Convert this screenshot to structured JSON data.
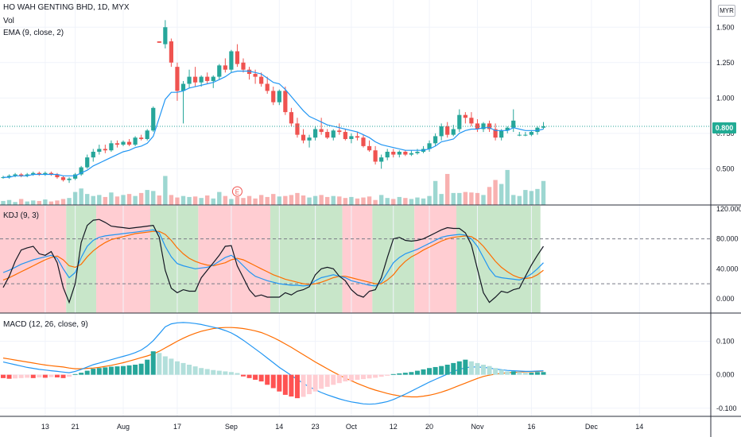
{
  "header": {
    "title": "HO WAH GENTING BHD, 1D, MYX",
    "vol_label": "Vol",
    "ema_label": "EMA (9, close, 2)",
    "currency": "MYR",
    "last_price": "0.800"
  },
  "panes": {
    "kdj_label": "KDJ (9, 3)",
    "macd_label": "MACD (12, 26, close, 9)"
  },
  "colors": {
    "up": "#26a69a",
    "down": "#ef5350",
    "ema": "#2196f3",
    "k": "#2196f3",
    "d": "#ff6d00",
    "j": "#131722",
    "macd": "#2196f3",
    "signal": "#ff6d00",
    "kdj_up_zone": "#c8e6c9",
    "kdj_down_zone": "#ffcdd2"
  },
  "chart_data": [
    {
      "type": "candlestick",
      "name": "price",
      "y_ticks": [
        "1.500",
        "1.250",
        "1.000",
        "0.750",
        "0.500"
      ],
      "ylim": [
        0.3,
        1.58
      ],
      "candles": [
        [
          0.44,
          0.45,
          0.43,
          0.44
        ],
        [
          0.44,
          0.46,
          0.43,
          0.45
        ],
        [
          0.45,
          0.47,
          0.44,
          0.46
        ],
        [
          0.46,
          0.47,
          0.44,
          0.45
        ],
        [
          0.45,
          0.47,
          0.44,
          0.46
        ],
        [
          0.46,
          0.48,
          0.45,
          0.47
        ],
        [
          0.47,
          0.48,
          0.45,
          0.46
        ],
        [
          0.46,
          0.48,
          0.45,
          0.47
        ],
        [
          0.47,
          0.48,
          0.45,
          0.46
        ],
        [
          0.46,
          0.47,
          0.43,
          0.44
        ],
        [
          0.44,
          0.45,
          0.41,
          0.42
        ],
        [
          0.42,
          0.44,
          0.4,
          0.43
        ],
        [
          0.43,
          0.47,
          0.42,
          0.46
        ],
        [
          0.46,
          0.52,
          0.45,
          0.51
        ],
        [
          0.51,
          0.6,
          0.5,
          0.58
        ],
        [
          0.58,
          0.64,
          0.55,
          0.62
        ],
        [
          0.62,
          0.67,
          0.6,
          0.64
        ],
        [
          0.64,
          0.67,
          0.61,
          0.63
        ],
        [
          0.63,
          0.7,
          0.62,
          0.68
        ],
        [
          0.68,
          0.7,
          0.65,
          0.67
        ],
        [
          0.67,
          0.7,
          0.66,
          0.69
        ],
        [
          0.69,
          0.71,
          0.66,
          0.67
        ],
        [
          0.67,
          0.73,
          0.66,
          0.72
        ],
        [
          0.72,
          0.74,
          0.7,
          0.71
        ],
        [
          0.71,
          0.78,
          0.7,
          0.77
        ],
        [
          0.77,
          0.94,
          0.76,
          0.93
        ],
        [
          1.4,
          1.4,
          1.39,
          1.39
        ],
        [
          1.38,
          1.55,
          1.35,
          1.5
        ],
        [
          1.4,
          1.42,
          1.22,
          1.25
        ],
        [
          1.22,
          1.25,
          0.98,
          1.05
        ],
        [
          1.05,
          1.12,
          0.82,
          1.1
        ],
        [
          1.1,
          1.2,
          1.07,
          1.15
        ],
        [
          1.15,
          1.22,
          1.08,
          1.11
        ],
        [
          1.11,
          1.16,
          1.08,
          1.15
        ],
        [
          1.15,
          1.18,
          1.1,
          1.12
        ],
        [
          1.12,
          1.16,
          1.07,
          1.15
        ],
        [
          1.15,
          1.24,
          1.13,
          1.23
        ],
        [
          1.23,
          1.28,
          1.18,
          1.2
        ],
        [
          1.2,
          1.34,
          1.18,
          1.33
        ],
        [
          1.33,
          1.38,
          1.22,
          1.24
        ],
        [
          1.25,
          1.28,
          1.18,
          1.2
        ],
        [
          1.2,
          1.22,
          1.13,
          1.17
        ],
        [
          1.17,
          1.2,
          1.1,
          1.15
        ],
        [
          1.15,
          1.18,
          1.08,
          1.1
        ],
        [
          1.1,
          1.15,
          1.03,
          1.05
        ],
        [
          1.05,
          1.08,
          0.95,
          0.97
        ],
        [
          0.97,
          1.06,
          0.95,
          1.05
        ],
        [
          1.05,
          1.08,
          0.88,
          0.9
        ],
        [
          0.9,
          0.93,
          0.8,
          0.82
        ],
        [
          0.82,
          0.86,
          0.72,
          0.74
        ],
        [
          0.74,
          0.78,
          0.68,
          0.7
        ],
        [
          0.7,
          0.74,
          0.65,
          0.72
        ],
        [
          0.72,
          0.8,
          0.7,
          0.78
        ],
        [
          0.78,
          0.86,
          0.74,
          0.76
        ],
        [
          0.76,
          0.78,
          0.71,
          0.72
        ],
        [
          0.72,
          0.78,
          0.7,
          0.77
        ],
        [
          0.77,
          0.82,
          0.74,
          0.76
        ],
        [
          0.76,
          0.78,
          0.7,
          0.71
        ],
        [
          0.71,
          0.75,
          0.68,
          0.73
        ],
        [
          0.73,
          0.76,
          0.7,
          0.72
        ],
        [
          0.72,
          0.74,
          0.65,
          0.66
        ],
        [
          0.66,
          0.7,
          0.62,
          0.63
        ],
        [
          0.63,
          0.66,
          0.53,
          0.55
        ],
        [
          0.55,
          0.6,
          0.5,
          0.58
        ],
        [
          0.58,
          0.64,
          0.56,
          0.62
        ],
        [
          0.62,
          0.64,
          0.58,
          0.6
        ],
        [
          0.6,
          0.63,
          0.58,
          0.62
        ],
        [
          0.62,
          0.63,
          0.59,
          0.6
        ],
        [
          0.6,
          0.63,
          0.59,
          0.61
        ],
        [
          0.61,
          0.64,
          0.6,
          0.62
        ],
        [
          0.62,
          0.66,
          0.61,
          0.64
        ],
        [
          0.64,
          0.7,
          0.62,
          0.68
        ],
        [
          0.68,
          0.75,
          0.66,
          0.73
        ],
        [
          0.73,
          0.82,
          0.7,
          0.8
        ],
        [
          0.8,
          0.83,
          0.72,
          0.74
        ],
        [
          0.74,
          0.81,
          0.73,
          0.78
        ],
        [
          0.78,
          0.92,
          0.76,
          0.88
        ],
        [
          0.88,
          0.9,
          0.82,
          0.86
        ],
        [
          0.86,
          0.9,
          0.8,
          0.82
        ],
        [
          0.82,
          0.85,
          0.76,
          0.78
        ],
        [
          0.78,
          0.83,
          0.76,
          0.82
        ],
        [
          0.82,
          0.84,
          0.76,
          0.78
        ],
        [
          0.78,
          0.82,
          0.7,
          0.72
        ],
        [
          0.72,
          0.78,
          0.7,
          0.77
        ],
        [
          0.77,
          0.8,
          0.75,
          0.79
        ],
        [
          0.79,
          0.92,
          0.76,
          0.84
        ],
        [
          0.74,
          0.76,
          0.73,
          0.74
        ],
        [
          0.74,
          0.76,
          0.73,
          0.74
        ],
        [
          0.74,
          0.77,
          0.73,
          0.76
        ],
        [
          0.76,
          0.8,
          0.74,
          0.79
        ],
        [
          0.79,
          0.83,
          0.78,
          0.8
        ]
      ],
      "ema": [
        0.44,
        0.44,
        0.45,
        0.45,
        0.45,
        0.46,
        0.46,
        0.46,
        0.46,
        0.46,
        0.45,
        0.45,
        0.45,
        0.47,
        0.49,
        0.52,
        0.54,
        0.56,
        0.58,
        0.6,
        0.62,
        0.63,
        0.65,
        0.66,
        0.68,
        0.73,
        0.86,
        0.99,
        1.04,
        1.04,
        1.05,
        1.07,
        1.08,
        1.09,
        1.1,
        1.11,
        1.13,
        1.15,
        1.18,
        1.19,
        1.19,
        1.19,
        1.18,
        1.17,
        1.14,
        1.11,
        1.1,
        1.06,
        1.01,
        0.96,
        0.91,
        0.87,
        0.85,
        0.83,
        0.81,
        0.8,
        0.79,
        0.78,
        0.77,
        0.76,
        0.74,
        0.72,
        0.69,
        0.67,
        0.66,
        0.65,
        0.64,
        0.63,
        0.63,
        0.63,
        0.63,
        0.64,
        0.66,
        0.69,
        0.7,
        0.71,
        0.75,
        0.77,
        0.78,
        0.78,
        0.79,
        0.79,
        0.77,
        0.77,
        0.77,
        0.79,
        0.78,
        0.77,
        0.77,
        0.77,
        0.78
      ],
      "volume_ylim": [
        0,
        100
      ],
      "volume": [
        8,
        10,
        6,
        12,
        7,
        9,
        8,
        11,
        7,
        9,
        12,
        14,
        26,
        33,
        22,
        18,
        20,
        16,
        25,
        17,
        20,
        22,
        18,
        24,
        30,
        28,
        19,
        58,
        20,
        15,
        18,
        16,
        17,
        14,
        19,
        13,
        26,
        18,
        12,
        16,
        14,
        18,
        13,
        20,
        16,
        22,
        17,
        18,
        20,
        24,
        19,
        15,
        18,
        20,
        16,
        18,
        17,
        14,
        16,
        13,
        15,
        17,
        10,
        20,
        14,
        12,
        16,
        14,
        12,
        15,
        13,
        18,
        48,
        22,
        62,
        24,
        24,
        26,
        25,
        24,
        20,
        36,
        50,
        42,
        70,
        20,
        18,
        30,
        28,
        32,
        48
      ]
    },
    {
      "type": "line",
      "name": "KDJ (9, 3)",
      "y_ticks": [
        "120.000",
        "80.000",
        "40.000",
        "0.000"
      ],
      "ylim": [
        -15,
        120
      ],
      "hlines": [
        80,
        20
      ],
      "k": [
        35,
        38,
        42,
        46,
        49,
        52,
        54,
        56,
        58,
        54,
        40,
        28,
        35,
        55,
        70,
        78,
        82,
        84,
        85,
        86,
        87,
        88,
        89,
        90,
        91,
        92,
        88,
        70,
        56,
        47,
        44,
        42,
        40,
        41,
        42,
        45,
        50,
        55,
        58,
        52,
        44,
        36,
        30,
        27,
        24,
        22,
        20,
        19,
        18,
        18,
        17,
        18,
        24,
        28,
        30,
        32,
        30,
        28,
        24,
        22,
        20,
        18,
        17,
        22,
        35,
        48,
        55,
        60,
        63,
        66,
        70,
        74,
        78,
        82,
        84,
        85,
        86,
        85,
        80,
        70,
        55,
        40,
        30,
        28,
        27,
        26,
        25,
        28,
        33,
        40,
        48
      ],
      "d": [
        25,
        28,
        32,
        36,
        40,
        44,
        48,
        52,
        55,
        57,
        52,
        44,
        42,
        46,
        56,
        64,
        70,
        75,
        79,
        81,
        83,
        85,
        87,
        88,
        89,
        90,
        90,
        86,
        78,
        68,
        60,
        54,
        50,
        47,
        45,
        44,
        46,
        48,
        52,
        54,
        52,
        48,
        44,
        40,
        36,
        32,
        29,
        26,
        24,
        22,
        20,
        19,
        20,
        22,
        25,
        28,
        30,
        30,
        28,
        26,
        24,
        22,
        20,
        20,
        25,
        32,
        42,
        50,
        56,
        60,
        65,
        69,
        73,
        77,
        80,
        82,
        83,
        84,
        83,
        78,
        70,
        60,
        50,
        42,
        36,
        31,
        28,
        27,
        28,
        32,
        38
      ],
      "j": [
        15,
        30,
        50,
        65,
        68,
        70,
        60,
        58,
        63,
        48,
        15,
        -5,
        20,
        75,
        98,
        105,
        106,
        102,
        97,
        96,
        95,
        94,
        95,
        96,
        97,
        98,
        82,
        38,
        14,
        8,
        12,
        10,
        10,
        28,
        38,
        48,
        58,
        70,
        71,
        44,
        28,
        12,
        3,
        5,
        2,
        2,
        2,
        8,
        5,
        10,
        12,
        16,
        32,
        40,
        42,
        40,
        30,
        24,
        12,
        5,
        2,
        10,
        12,
        28,
        55,
        80,
        82,
        78,
        77,
        78,
        80,
        84,
        88,
        92,
        95,
        94,
        94,
        88,
        72,
        40,
        8,
        -5,
        2,
        10,
        8,
        12,
        14,
        30,
        45,
        58,
        70
      ],
      "zones": [
        [
          0,
          "down"
        ],
        [
          11,
          "up"
        ],
        [
          16,
          "down"
        ],
        [
          25,
          "up"
        ],
        [
          33,
          "down"
        ],
        [
          45,
          "up"
        ],
        [
          57,
          "down"
        ],
        [
          62,
          "up"
        ],
        [
          69,
          "down"
        ],
        [
          76,
          "up"
        ],
        [
          90,
          "end"
        ]
      ]
    },
    {
      "type": "bar",
      "name": "MACD (12, 26, close, 9)",
      "y_ticks": [
        "0.100",
        "0.000",
        "-0.100"
      ],
      "ylim": [
        -0.11,
        0.17
      ],
      "histogram": [
        -0.01,
        -0.012,
        -0.011,
        -0.01,
        -0.009,
        -0.01,
        -0.008,
        -0.009,
        -0.007,
        -0.008,
        -0.01,
        -0.006,
        0.002,
        0.006,
        0.012,
        0.018,
        0.02,
        0.022,
        0.024,
        0.025,
        0.026,
        0.028,
        0.03,
        0.033,
        0.045,
        0.07,
        0.065,
        0.055,
        0.048,
        0.04,
        0.035,
        0.03,
        0.025,
        0.02,
        0.017,
        0.014,
        0.012,
        0.01,
        0.008,
        0.005,
        -0.005,
        -0.01,
        -0.015,
        -0.02,
        -0.03,
        -0.04,
        -0.05,
        -0.06,
        -0.065,
        -0.07,
        -0.066,
        -0.058,
        -0.05,
        -0.042,
        -0.036,
        -0.03,
        -0.025,
        -0.02,
        -0.018,
        -0.015,
        -0.013,
        -0.011,
        -0.009,
        -0.006,
        -0.003,
        0.002,
        0.004,
        0.006,
        0.008,
        0.012,
        0.016,
        0.02,
        0.023,
        0.026,
        0.03,
        0.035,
        0.04,
        0.045,
        0.04,
        0.035,
        0.03,
        0.026,
        0.02,
        0.015,
        0.01,
        0.01,
        0.008,
        0.006,
        0.006,
        0.008,
        0.008
      ],
      "macd": [
        0.038,
        0.034,
        0.03,
        0.026,
        0.022,
        0.019,
        0.016,
        0.014,
        0.012,
        0.01,
        0.008,
        0.006,
        0.01,
        0.016,
        0.023,
        0.03,
        0.035,
        0.04,
        0.045,
        0.05,
        0.055,
        0.06,
        0.066,
        0.074,
        0.086,
        0.102,
        0.122,
        0.143,
        0.152,
        0.155,
        0.156,
        0.155,
        0.153,
        0.15,
        0.146,
        0.142,
        0.138,
        0.132,
        0.125,
        0.115,
        0.103,
        0.09,
        0.077,
        0.064,
        0.05,
        0.036,
        0.022,
        0.01,
        -0.002,
        -0.014,
        -0.026,
        -0.036,
        -0.045,
        -0.053,
        -0.06,
        -0.066,
        -0.072,
        -0.077,
        -0.081,
        -0.084,
        -0.087,
        -0.088,
        -0.087,
        -0.084,
        -0.08,
        -0.074,
        -0.066,
        -0.058,
        -0.049,
        -0.04,
        -0.031,
        -0.022,
        -0.014,
        -0.006,
        0.002,
        0.01,
        0.016,
        0.021,
        0.023,
        0.023,
        0.022,
        0.02,
        0.017,
        0.015,
        0.013,
        0.012,
        0.011,
        0.01,
        0.01,
        0.011,
        0.012
      ],
      "signal": [
        0.05,
        0.047,
        0.044,
        0.041,
        0.038,
        0.035,
        0.032,
        0.029,
        0.027,
        0.025,
        0.023,
        0.02,
        0.018,
        0.018,
        0.019,
        0.02,
        0.022,
        0.025,
        0.028,
        0.032,
        0.036,
        0.041,
        0.046,
        0.051,
        0.056,
        0.062,
        0.07,
        0.08,
        0.09,
        0.1,
        0.109,
        0.117,
        0.124,
        0.13,
        0.134,
        0.138,
        0.14,
        0.141,
        0.141,
        0.14,
        0.138,
        0.135,
        0.131,
        0.126,
        0.119,
        0.111,
        0.102,
        0.092,
        0.082,
        0.071,
        0.06,
        0.049,
        0.038,
        0.028,
        0.018,
        0.008,
        -0.001,
        -0.01,
        -0.018,
        -0.026,
        -0.033,
        -0.04,
        -0.046,
        -0.051,
        -0.056,
        -0.06,
        -0.063,
        -0.065,
        -0.066,
        -0.066,
        -0.064,
        -0.061,
        -0.057,
        -0.052,
        -0.046,
        -0.039,
        -0.032,
        -0.025,
        -0.018,
        -0.011,
        -0.005,
        -0.001,
        0.002,
        0.004,
        0.006,
        0.007,
        0.008,
        0.009,
        0.009,
        0.01,
        0.011
      ]
    }
  ],
  "x_axis": {
    "labels": [
      "13",
      "21",
      "Aug",
      "17",
      "Sep",
      "14",
      "23",
      "Oct",
      "12",
      "20",
      "Nov",
      "16",
      "Dec",
      "14"
    ],
    "label_bars": [
      7,
      12,
      20,
      29,
      38,
      46,
      52,
      58,
      65,
      71,
      79,
      88,
      98,
      106
    ]
  },
  "earnings_marker": "E"
}
